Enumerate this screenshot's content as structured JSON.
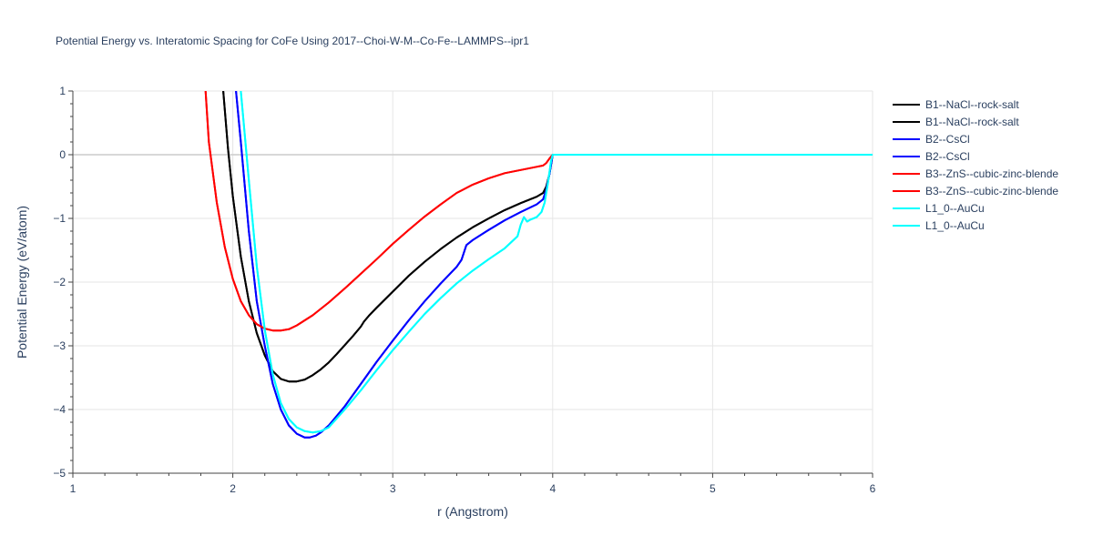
{
  "chart_data": {
    "type": "line",
    "title": "Potential Energy vs. Interatomic Spacing for CoFe Using 2017--Choi-W-M--Co-Fe--LAMMPS--ipr1",
    "xlabel": "r (Angstrom)",
    "ylabel": "Potential Energy (eV/atom)",
    "xlim": [
      1,
      6
    ],
    "ylim": [
      -5,
      1
    ],
    "x_ticks": [
      "1",
      "2",
      "3",
      "4",
      "5",
      "6"
    ],
    "y_ticks": [
      "1",
      "0",
      "−1",
      "−2",
      "−3",
      "−4",
      "−5"
    ],
    "grid": true,
    "legend_position": "right",
    "series": [
      {
        "name": "B1--NaCl--rock-salt",
        "color": "#000000",
        "x": [
          1.94,
          1.97,
          2.0,
          2.05,
          2.1,
          2.15,
          2.2,
          2.25,
          2.3,
          2.35,
          2.4,
          2.45,
          2.5,
          2.55,
          2.6,
          2.65,
          2.7,
          2.75,
          2.8,
          2.82,
          2.85,
          2.9,
          3.0,
          3.1,
          3.2,
          3.3,
          3.4,
          3.5,
          3.6,
          3.7,
          3.8,
          3.9,
          3.94,
          3.96,
          3.98,
          4.0,
          4.5,
          5.0,
          6.0
        ],
        "y": [
          1.0,
          0.1,
          -0.65,
          -1.6,
          -2.3,
          -2.8,
          -3.15,
          -3.4,
          -3.52,
          -3.56,
          -3.56,
          -3.53,
          -3.46,
          -3.37,
          -3.26,
          -3.13,
          -2.99,
          -2.85,
          -2.7,
          -2.62,
          -2.53,
          -2.4,
          -2.15,
          -1.9,
          -1.68,
          -1.48,
          -1.3,
          -1.14,
          -1.0,
          -0.87,
          -0.76,
          -0.66,
          -0.6,
          -0.5,
          -0.3,
          0.0,
          0.0,
          0.0,
          0.0
        ]
      },
      {
        "name": "B1--NaCl--rock-salt",
        "color": "#000000",
        "x": [
          1.94,
          1.97,
          2.0,
          2.05,
          2.1,
          2.15,
          2.2,
          2.25,
          2.3,
          2.35,
          2.4,
          2.45,
          2.5,
          2.55,
          2.6,
          2.65,
          2.7,
          2.75,
          2.8,
          2.82,
          2.85,
          2.9,
          3.0,
          3.1,
          3.2,
          3.3,
          3.4,
          3.5,
          3.6,
          3.7,
          3.8,
          3.9,
          3.94,
          3.96,
          3.98,
          4.0,
          4.5,
          5.0,
          6.0
        ],
        "y": [
          1.0,
          0.1,
          -0.65,
          -1.6,
          -2.3,
          -2.8,
          -3.15,
          -3.4,
          -3.52,
          -3.56,
          -3.56,
          -3.53,
          -3.46,
          -3.37,
          -3.26,
          -3.13,
          -2.99,
          -2.85,
          -2.7,
          -2.62,
          -2.53,
          -2.4,
          -2.15,
          -1.9,
          -1.68,
          -1.48,
          -1.3,
          -1.14,
          -1.0,
          -0.87,
          -0.76,
          -0.66,
          -0.6,
          -0.5,
          -0.3,
          0.0,
          0.0,
          0.0,
          0.0
        ]
      },
      {
        "name": "B2--CsCl",
        "color": "#0000ff",
        "x": [
          2.02,
          2.05,
          2.1,
          2.15,
          2.2,
          2.25,
          2.3,
          2.35,
          2.4,
          2.45,
          2.48,
          2.52,
          2.55,
          2.6,
          2.7,
          2.8,
          2.9,
          3.0,
          3.1,
          3.2,
          3.3,
          3.4,
          3.43,
          3.46,
          3.5,
          3.6,
          3.7,
          3.8,
          3.9,
          3.94,
          3.96,
          3.98,
          4.0,
          4.5,
          5.0,
          6.0
        ],
        "y": [
          1.0,
          0.2,
          -1.2,
          -2.3,
          -3.0,
          -3.6,
          -4.0,
          -4.25,
          -4.38,
          -4.44,
          -4.44,
          -4.41,
          -4.36,
          -4.25,
          -3.95,
          -3.6,
          -3.25,
          -2.92,
          -2.6,
          -2.3,
          -2.02,
          -1.76,
          -1.65,
          -1.42,
          -1.34,
          -1.18,
          -1.03,
          -0.9,
          -0.78,
          -0.7,
          -0.55,
          -0.3,
          0.0,
          0.0,
          0.0,
          0.0
        ]
      },
      {
        "name": "B2--CsCl",
        "color": "#0000ff",
        "x": [
          2.02,
          2.05,
          2.1,
          2.15,
          2.2,
          2.25,
          2.3,
          2.35,
          2.4,
          2.45,
          2.48,
          2.52,
          2.55,
          2.6,
          2.7,
          2.8,
          2.9,
          3.0,
          3.1,
          3.2,
          3.3,
          3.4,
          3.43,
          3.46,
          3.5,
          3.6,
          3.7,
          3.8,
          3.9,
          3.94,
          3.96,
          3.98,
          4.0,
          4.5,
          5.0,
          6.0
        ],
        "y": [
          1.0,
          0.2,
          -1.2,
          -2.3,
          -3.0,
          -3.6,
          -4.0,
          -4.25,
          -4.38,
          -4.44,
          -4.44,
          -4.41,
          -4.36,
          -4.25,
          -3.95,
          -3.6,
          -3.25,
          -2.92,
          -2.6,
          -2.3,
          -2.02,
          -1.76,
          -1.65,
          -1.42,
          -1.34,
          -1.18,
          -1.03,
          -0.9,
          -0.78,
          -0.7,
          -0.55,
          -0.3,
          0.0,
          0.0,
          0.0,
          0.0
        ]
      },
      {
        "name": "B3--ZnS--cubic-zinc-blende",
        "color": "#ff0000",
        "x": [
          1.83,
          1.85,
          1.9,
          1.95,
          2.0,
          2.05,
          2.1,
          2.15,
          2.2,
          2.25,
          2.3,
          2.35,
          2.4,
          2.45,
          2.5,
          2.6,
          2.7,
          2.8,
          2.9,
          3.0,
          3.1,
          3.2,
          3.3,
          3.4,
          3.5,
          3.6,
          3.7,
          3.8,
          3.9,
          3.94,
          3.96,
          3.98,
          4.0,
          4.5,
          5.0,
          6.0
        ],
        "y": [
          1.0,
          0.2,
          -0.75,
          -1.45,
          -1.95,
          -2.3,
          -2.52,
          -2.66,
          -2.73,
          -2.76,
          -2.76,
          -2.74,
          -2.68,
          -2.6,
          -2.52,
          -2.32,
          -2.1,
          -1.87,
          -1.64,
          -1.4,
          -1.18,
          -0.97,
          -0.78,
          -0.6,
          -0.47,
          -0.37,
          -0.29,
          -0.24,
          -0.19,
          -0.17,
          -0.13,
          -0.06,
          0.0,
          0.0,
          0.0,
          0.0
        ]
      },
      {
        "name": "B3--ZnS--cubic-zinc-blende",
        "color": "#ff0000",
        "x": [
          1.83,
          1.85,
          1.9,
          1.95,
          2.0,
          2.05,
          2.1,
          2.15,
          2.2,
          2.25,
          2.3,
          2.35,
          2.4,
          2.45,
          2.5,
          2.6,
          2.7,
          2.8,
          2.9,
          3.0,
          3.1,
          3.2,
          3.3,
          3.4,
          3.5,
          3.6,
          3.7,
          3.8,
          3.9,
          3.94,
          3.96,
          3.98,
          4.0,
          4.5,
          5.0,
          6.0
        ],
        "y": [
          1.0,
          0.2,
          -0.75,
          -1.45,
          -1.95,
          -2.3,
          -2.52,
          -2.66,
          -2.73,
          -2.76,
          -2.76,
          -2.74,
          -2.68,
          -2.6,
          -2.52,
          -2.32,
          -2.1,
          -1.87,
          -1.64,
          -1.4,
          -1.18,
          -0.97,
          -0.78,
          -0.6,
          -0.47,
          -0.37,
          -0.29,
          -0.24,
          -0.19,
          -0.17,
          -0.13,
          -0.06,
          0.0,
          0.0,
          0.0,
          0.0
        ]
      },
      {
        "name": "L1_0--AuCu",
        "color": "#00ffff",
        "x": [
          2.05,
          2.1,
          2.15,
          2.2,
          2.25,
          2.3,
          2.35,
          2.4,
          2.45,
          2.5,
          2.55,
          2.6,
          2.7,
          2.8,
          2.9,
          3.0,
          3.1,
          3.2,
          3.3,
          3.4,
          3.5,
          3.6,
          3.7,
          3.78,
          3.8,
          3.82,
          3.84,
          3.86,
          3.9,
          3.93,
          3.95,
          3.97,
          3.99,
          4.0,
          4.5,
          5.0,
          6.0
        ],
        "y": [
          1.0,
          -0.4,
          -1.75,
          -2.75,
          -3.45,
          -3.9,
          -4.15,
          -4.28,
          -4.34,
          -4.36,
          -4.34,
          -4.28,
          -4.0,
          -3.7,
          -3.38,
          -3.07,
          -2.78,
          -2.5,
          -2.25,
          -2.02,
          -1.82,
          -1.64,
          -1.47,
          -1.28,
          -1.1,
          -0.98,
          -1.05,
          -1.02,
          -0.98,
          -0.9,
          -0.75,
          -0.45,
          -0.1,
          0.0,
          0.0,
          0.0,
          0.0
        ]
      },
      {
        "name": "L1_0--AuCu",
        "color": "#00ffff",
        "x": [
          2.05,
          2.1,
          2.15,
          2.2,
          2.25,
          2.3,
          2.35,
          2.4,
          2.45,
          2.5,
          2.55,
          2.6,
          2.7,
          2.8,
          2.9,
          3.0,
          3.1,
          3.2,
          3.3,
          3.4,
          3.5,
          3.6,
          3.7,
          3.78,
          3.8,
          3.82,
          3.84,
          3.86,
          3.9,
          3.93,
          3.95,
          3.97,
          3.99,
          4.0,
          4.5,
          5.0,
          6.0
        ],
        "y": [
          1.0,
          -0.4,
          -1.75,
          -2.75,
          -3.45,
          -3.9,
          -4.15,
          -4.28,
          -4.34,
          -4.36,
          -4.34,
          -4.28,
          -4.0,
          -3.7,
          -3.38,
          -3.07,
          -2.78,
          -2.5,
          -2.25,
          -2.02,
          -1.82,
          -1.64,
          -1.47,
          -1.28,
          -1.1,
          -0.98,
          -1.05,
          -1.02,
          -0.98,
          -0.9,
          -0.75,
          -0.45,
          -0.1,
          0.0,
          0.0,
          0.0,
          0.0
        ]
      }
    ]
  }
}
